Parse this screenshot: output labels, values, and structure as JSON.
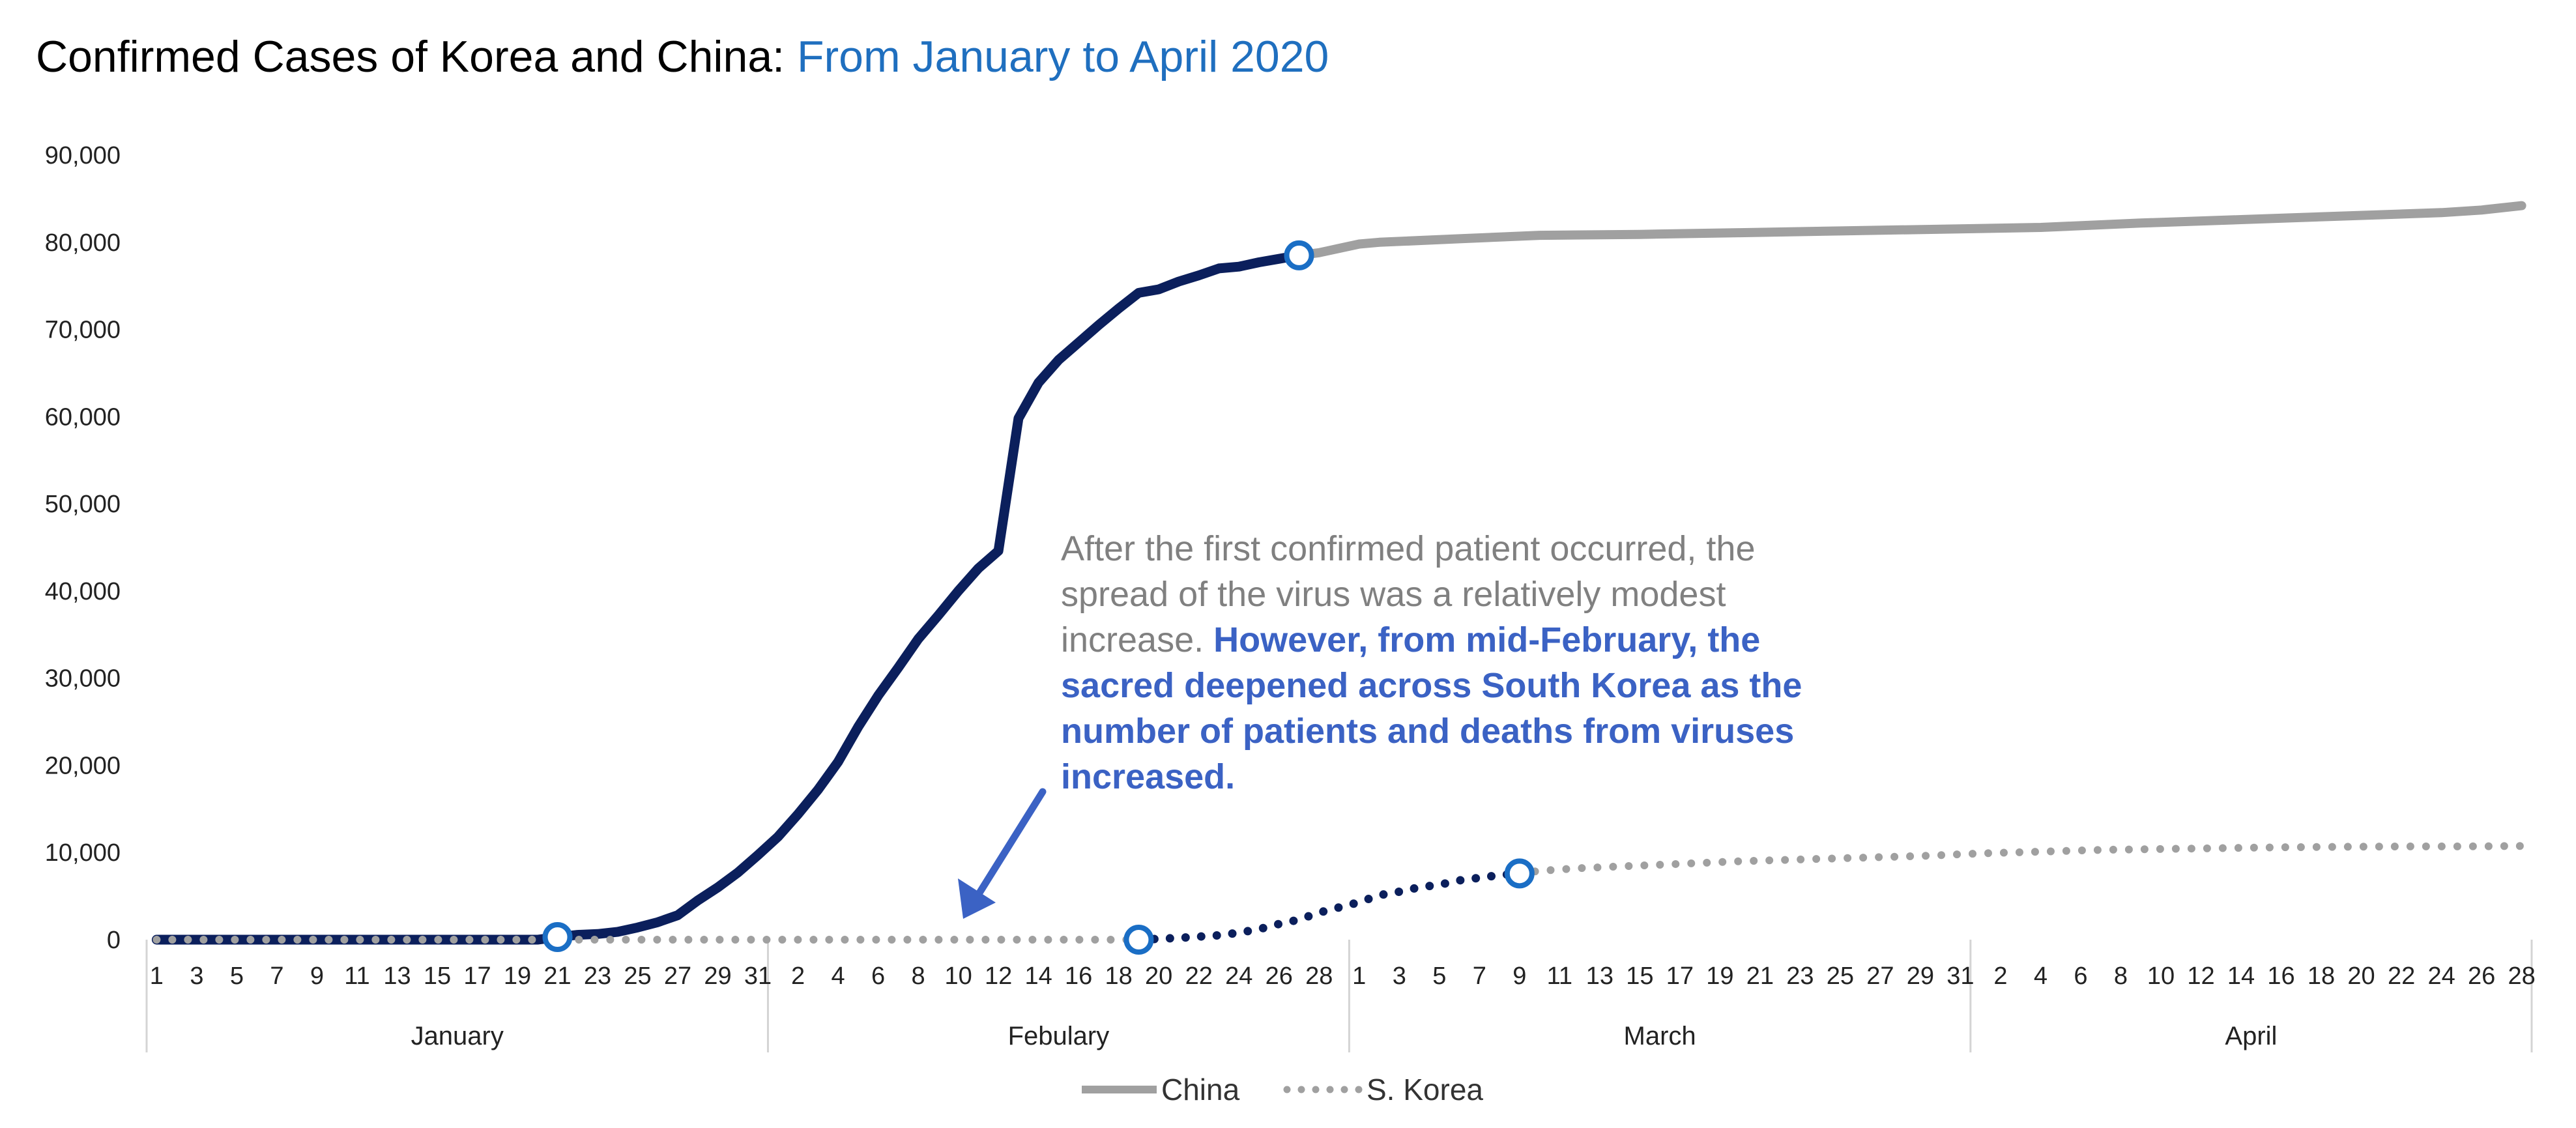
{
  "chart_data": {
    "type": "line",
    "title": "Confirmed Cases of Korea and China",
    "subtitle": "From January to April 2020",
    "title_color": "#000000",
    "subtitle_color": "#1f6fbf",
    "xlabel": "",
    "ylabel": "",
    "ylim": [
      0,
      90000
    ],
    "yticks": [
      "0",
      "10,000",
      "20,000",
      "30,000",
      "40,000",
      "50,000",
      "60,000",
      "70,000",
      "80,000",
      "90,000"
    ],
    "grid": false,
    "months": [
      {
        "name": "January",
        "days": 31
      },
      {
        "name": "Febulary",
        "days": 29
      },
      {
        "name": "March",
        "days": 31
      },
      {
        "name": "April",
        "days": 28
      }
    ],
    "xtick_labels": {
      "January": [
        "1",
        "3",
        "5",
        "7",
        "9",
        "11",
        "13",
        "15",
        "17",
        "19",
        "21",
        "23",
        "25",
        "27",
        "29",
        "31"
      ],
      "Febulary": [
        "2",
        "4",
        "6",
        "8",
        "10",
        "12",
        "14",
        "16",
        "18",
        "20",
        "22",
        "24",
        "26",
        "28"
      ],
      "March": [
        "1",
        "3",
        "5",
        "7",
        "9",
        "11",
        "13",
        "15",
        "17",
        "19",
        "21",
        "23",
        "25",
        "27",
        "29",
        "31"
      ],
      "April": [
        "2",
        "4",
        "6",
        "8",
        "10",
        "12",
        "14",
        "16",
        "18",
        "20",
        "22",
        "24",
        "26",
        "28"
      ]
    },
    "series": [
      {
        "name": "China",
        "style": "solid",
        "highlight_color": "#0b1f5c",
        "base_color": "#a0a0a0",
        "highlight_until_day": 58,
        "points": [
          [
            1,
            0
          ],
          [
            20,
            0
          ],
          [
            21,
            300
          ],
          [
            22,
            550
          ],
          [
            23,
            650
          ],
          [
            24,
            900
          ],
          [
            25,
            1400
          ],
          [
            26,
            2000
          ],
          [
            27,
            2800
          ],
          [
            28,
            4500
          ],
          [
            29,
            6000
          ],
          [
            30,
            7700
          ],
          [
            31,
            9700
          ],
          [
            32,
            11800
          ],
          [
            33,
            14400
          ],
          [
            34,
            17200
          ],
          [
            35,
            20400
          ],
          [
            36,
            24400
          ],
          [
            37,
            28000
          ],
          [
            38,
            31200
          ],
          [
            39,
            34500
          ],
          [
            40,
            37200
          ],
          [
            41,
            40000
          ],
          [
            42,
            42600
          ],
          [
            43,
            44600
          ],
          [
            44,
            59800
          ],
          [
            45,
            63900
          ],
          [
            46,
            66500
          ],
          [
            47,
            68500
          ],
          [
            48,
            70500
          ],
          [
            49,
            72400
          ],
          [
            50,
            74200
          ],
          [
            51,
            74600
          ],
          [
            52,
            75500
          ],
          [
            53,
            76200
          ],
          [
            54,
            77000
          ],
          [
            55,
            77200
          ],
          [
            56,
            77700
          ],
          [
            57,
            78100
          ],
          [
            58,
            78500
          ],
          [
            59,
            78800
          ],
          [
            60,
            79300
          ],
          [
            61,
            79800
          ],
          [
            62,
            80000
          ],
          [
            66,
            80400
          ],
          [
            70,
            80800
          ],
          [
            75,
            80900
          ],
          [
            80,
            81100
          ],
          [
            85,
            81300
          ],
          [
            90,
            81500
          ],
          [
            95,
            81700
          ],
          [
            100,
            82200
          ],
          [
            105,
            82600
          ],
          [
            110,
            83000
          ],
          [
            115,
            83400
          ],
          [
            117,
            83700
          ],
          [
            119,
            84200
          ]
        ],
        "markers": [
          [
            21,
            300
          ],
          [
            58,
            78500
          ]
        ]
      },
      {
        "name": "S. Korea",
        "style": "dotted",
        "highlight_color": "#0b1f5c",
        "base_color": "#a0a0a0",
        "highlight_from_day": 50,
        "highlight_until_day": 69,
        "points": [
          [
            1,
            0
          ],
          [
            20,
            0
          ],
          [
            50,
            0
          ],
          [
            51,
            100
          ],
          [
            52,
            200
          ],
          [
            53,
            350
          ],
          [
            54,
            500
          ],
          [
            55,
            800
          ],
          [
            56,
            1200
          ],
          [
            57,
            1800
          ],
          [
            58,
            2300
          ],
          [
            59,
            3100
          ],
          [
            60,
            3700
          ],
          [
            61,
            4300
          ],
          [
            62,
            5100
          ],
          [
            63,
            5500
          ],
          [
            64,
            6000
          ],
          [
            65,
            6300
          ],
          [
            66,
            6800
          ],
          [
            67,
            7100
          ],
          [
            68,
            7400
          ],
          [
            69,
            7600
          ],
          [
            70,
            7900
          ],
          [
            72,
            8200
          ],
          [
            74,
            8400
          ],
          [
            76,
            8600
          ],
          [
            78,
            8800
          ],
          [
            80,
            9000
          ],
          [
            83,
            9200
          ],
          [
            86,
            9400
          ],
          [
            89,
            9600
          ],
          [
            92,
            9900
          ],
          [
            95,
            10100
          ],
          [
            98,
            10300
          ],
          [
            101,
            10400
          ],
          [
            104,
            10500
          ],
          [
            107,
            10600
          ],
          [
            110,
            10650
          ],
          [
            113,
            10700
          ],
          [
            116,
            10700
          ],
          [
            119,
            10750
          ]
        ],
        "markers": [
          [
            50,
            0
          ],
          [
            69,
            7600
          ]
        ]
      }
    ],
    "marker_color": "#1a6ec5",
    "legend": [
      "China",
      "S. Korea"
    ],
    "legend_position": "bottom-center",
    "annotation": {
      "normal_lines": [
        "After the first confirmed patient occurred, the",
        "spread of the virus was a relatively modest",
        "increase."
      ],
      "bold_first": " However, from mid-February, the",
      "bold_lines": [
        "sacred deepened across South Korea as the",
        "number of patients and deaths from viruses",
        "increased."
      ],
      "normal_color": "#808080",
      "bold_color": "#3b62c4",
      "arrow_color": "#3b62c4"
    }
  }
}
